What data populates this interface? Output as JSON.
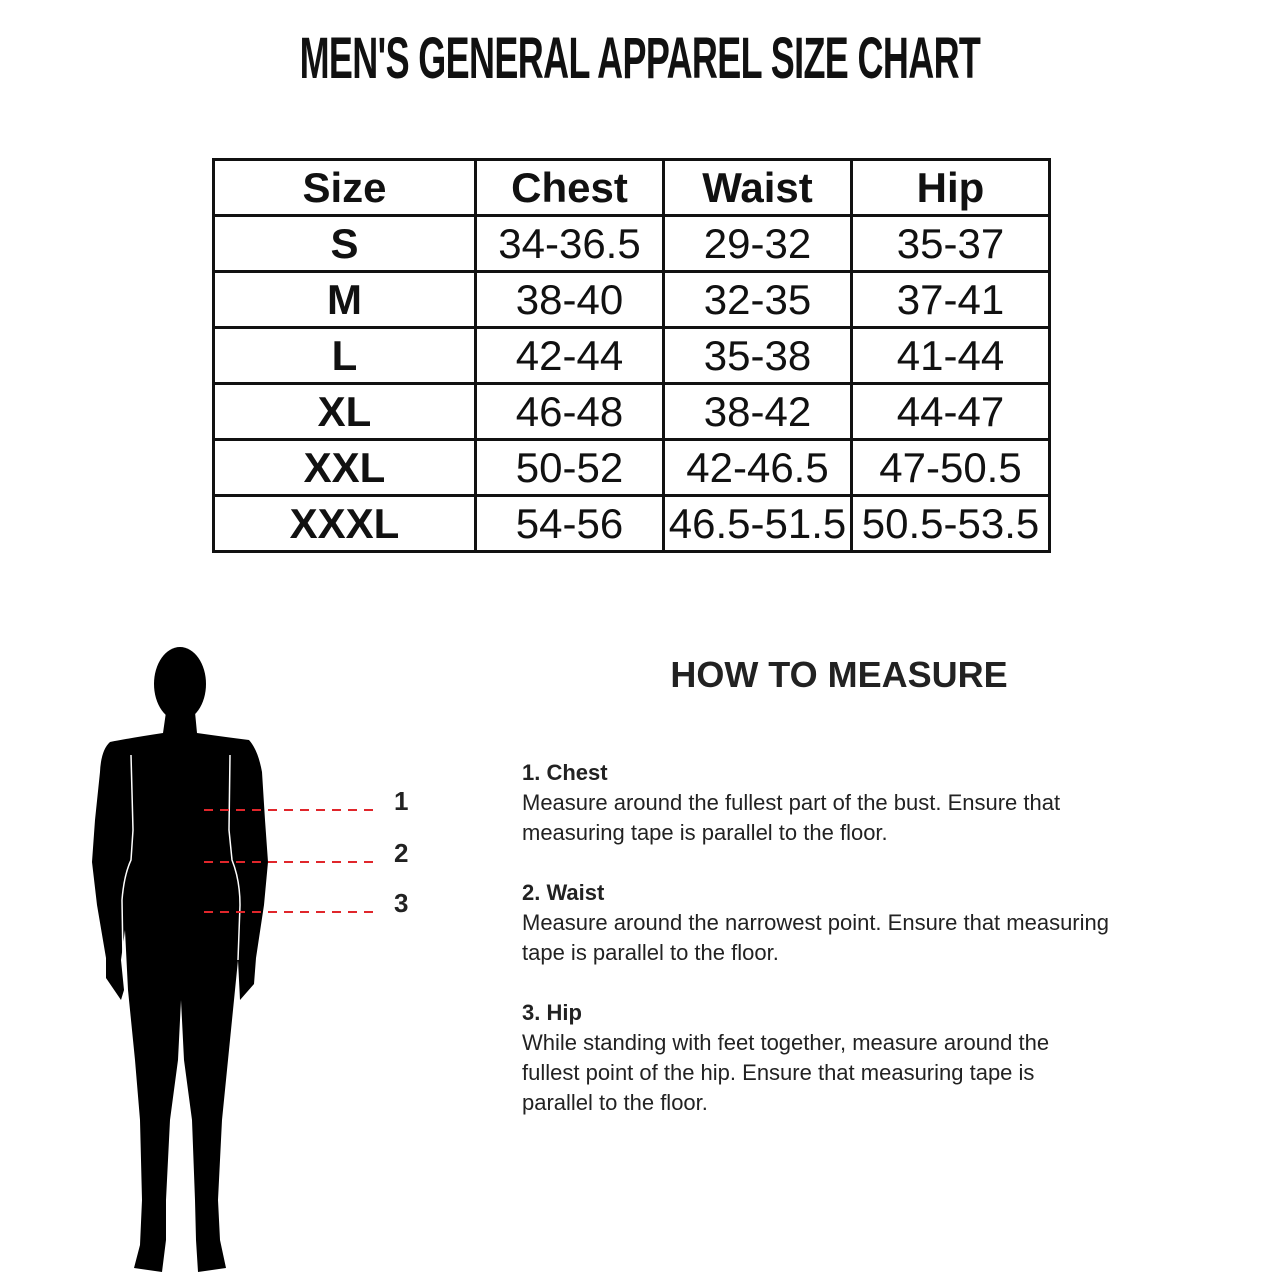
{
  "title": "MEN'S  GENERAL APPAREL SIZE CHART",
  "table": {
    "headers": [
      "Size",
      "Chest",
      "Waist",
      "Hip"
    ],
    "rows": [
      [
        "S",
        "34-36.5",
        "29-32",
        "35-37"
      ],
      [
        "M",
        "38-40",
        "32-35",
        "37-41"
      ],
      [
        "L",
        "42-44",
        "35-38",
        "41-44"
      ],
      [
        "XL",
        "46-48",
        "38-42",
        "44-47"
      ],
      [
        "XXL",
        "50-52",
        "42-46.5",
        "47-50.5"
      ],
      [
        "XXXL",
        "54-56",
        "46.5-51.5",
        "50.5-53.5"
      ]
    ]
  },
  "figure": {
    "markers": [
      "1",
      "2",
      "3"
    ],
    "line_color": "#e0262b",
    "silhouette_color": "#000000"
  },
  "how_to_measure": {
    "heading": "HOW TO MEASURE",
    "sections": [
      {
        "title": "1. Chest",
        "lines": [
          "Measure around the fullest part of the bust. Ensure that",
          "measuring tape is parallel to the floor."
        ]
      },
      {
        "title": "2. Waist",
        "lines": [
          "Measure around the narrowest point. Ensure that measuring",
          "tape is parallel to the floor."
        ]
      },
      {
        "title": "3. Hip",
        "lines": [
          "While standing with feet together, measure around the",
          "fullest point of the hip. Ensure that measuring tape is",
          "parallel to the floor."
        ]
      }
    ]
  }
}
